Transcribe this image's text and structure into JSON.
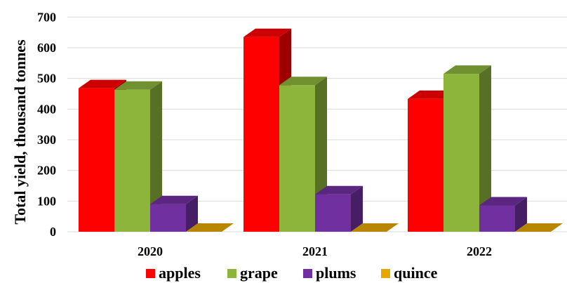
{
  "chart_data": {
    "type": "bar",
    "style": "3d-clustered-column",
    "title": "",
    "ylabel": "Total yield,  thousand tonnes",
    "xlabel": "",
    "ylim": [
      0,
      700
    ],
    "yticks": [
      0,
      100,
      200,
      300,
      400,
      500,
      600,
      700
    ],
    "grid": true,
    "legend_position": "bottom",
    "categories": [
      "2020",
      "2021",
      "2022"
    ],
    "series": [
      {
        "name": "apples",
        "color": "#ff0000",
        "values": [
          468,
          635,
          433
        ]
      },
      {
        "name": "grape",
        "color": "#8db53c",
        "values": [
          463,
          478,
          515
        ]
      },
      {
        "name": "plums",
        "color": "#7030a0",
        "values": [
          90,
          122,
          86
        ]
      },
      {
        "name": "quince",
        "color": "#e6a800",
        "values": [
          0,
          0,
          0
        ]
      }
    ]
  }
}
